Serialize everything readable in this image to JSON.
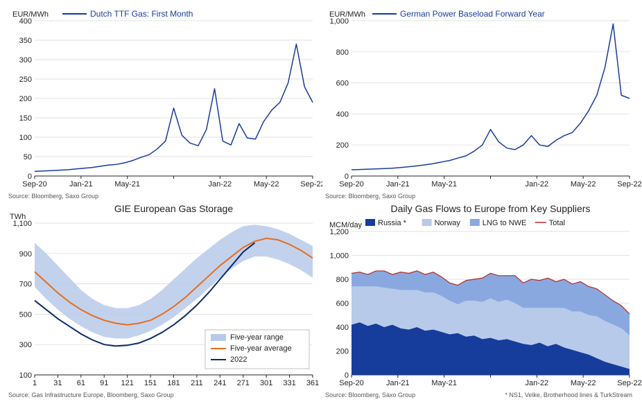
{
  "colors": {
    "line_blue": "#163c9c",
    "orange": "#e86c19",
    "navy": "#0b2a66",
    "area_light": "#b7caea",
    "area_mid": "#8aa8e0",
    "area_dark": "#163c9c",
    "red_line": "#b02a2a",
    "grid": "#d9d9d9",
    "axis": "#222222",
    "bg": "#ffffff"
  },
  "chart1": {
    "type": "line",
    "y_unit": "EUR/MWh",
    "legend": "Dutch TTF Gas: First Month",
    "source": "Source: Bloomberg, Saxo Group",
    "x_labels": [
      "Sep-20",
      "Jan-21",
      "May-21",
      "",
      "Jan-22",
      "May-22",
      "Sep-22"
    ],
    "x_ticks_major": [
      0,
      4,
      8,
      12,
      16,
      20,
      24
    ],
    "ylim": [
      0,
      400
    ],
    "ytick_step": 50,
    "series": [
      {
        "name": "ttf",
        "color": "#163c9c",
        "width": 1.5,
        "y": [
          12,
          13,
          14,
          15,
          16,
          18,
          20,
          22,
          25,
          28,
          30,
          34,
          40,
          48,
          55,
          70,
          90,
          175,
          105,
          85,
          78,
          120,
          225,
          90,
          80,
          135,
          98,
          95,
          140,
          170,
          190,
          240,
          340,
          230,
          190
        ]
      }
    ]
  },
  "chart2": {
    "type": "line",
    "y_unit": "EUR/MWh",
    "legend": "German Power Baseload Forward Year",
    "source": "Source: Bloomberg, Saxo Group",
    "x_labels": [
      "Sep-20",
      "Jan-21",
      "May-21",
      "",
      "Jan-22",
      "May-22",
      "Sep-22"
    ],
    "x_ticks_major": [
      0,
      4,
      8,
      12,
      16,
      20,
      24
    ],
    "ylim": [
      0,
      1000
    ],
    "ytick_step": 200,
    "series": [
      {
        "name": "power",
        "color": "#163c9c",
        "width": 1.5,
        "y": [
          40,
          42,
          44,
          46,
          48,
          50,
          55,
          60,
          65,
          72,
          80,
          90,
          100,
          115,
          130,
          160,
          200,
          300,
          220,
          180,
          170,
          200,
          260,
          200,
          190,
          230,
          260,
          280,
          340,
          420,
          520,
          700,
          980,
          520,
          500
        ]
      }
    ]
  },
  "chart3": {
    "type": "line-band",
    "title": "GIE European Gas Storage",
    "y_unit": "TWh",
    "source": "Source: Gas Infrastructure Europe, Bloomberg, Saxo Group",
    "x_labels": [
      "1",
      "31",
      "61",
      "91",
      "121",
      "151",
      "181",
      "211",
      "241",
      "271",
      "301",
      "331",
      "361"
    ],
    "ylim": [
      100,
      1100
    ],
    "ytick_step": 200,
    "legend_items": [
      {
        "label": "Five-year range",
        "swatch": "#b7caea",
        "type": "area"
      },
      {
        "label": "Five-year average",
        "swatch": "#e86c19",
        "type": "line"
      },
      {
        "label": "2022",
        "swatch": "#0b2a66",
        "type": "line"
      }
    ],
    "band": {
      "color": "#b7caea",
      "upper": [
        970,
        900,
        820,
        740,
        660,
        600,
        560,
        540,
        540,
        560,
        600,
        660,
        730,
        800,
        870,
        930,
        990,
        1040,
        1080,
        1090,
        1080,
        1060,
        1030,
        990,
        950
      ],
      "lower": [
        680,
        600,
        530,
        470,
        420,
        380,
        350,
        340,
        340,
        360,
        390,
        430,
        480,
        540,
        600,
        670,
        740,
        800,
        850,
        880,
        880,
        860,
        830,
        790,
        740
      ]
    },
    "avg": {
      "color": "#e86c19",
      "width": 2,
      "y": [
        780,
        710,
        640,
        580,
        530,
        490,
        460,
        440,
        430,
        440,
        460,
        500,
        550,
        610,
        680,
        750,
        820,
        880,
        940,
        980,
        1000,
        990,
        960,
        920,
        870
      ]
    },
    "yr2022": {
      "color": "#0b2a66",
      "width": 2,
      "y": [
        590,
        530,
        470,
        420,
        370,
        330,
        300,
        290,
        295,
        310,
        340,
        380,
        430,
        490,
        560,
        640,
        730,
        820,
        910,
        970
      ]
    }
  },
  "chart4": {
    "type": "stacked-area",
    "title": "Daily Gas Flows to Europe from Key Suppliers",
    "y_unit": "MCM/day",
    "source": "Source: Bloomberg, Saxo Group",
    "footnote": "* NS1, Velke, Brotherhood lines & TurkStream",
    "x_labels": [
      "Sep-20",
      "Jan-21",
      "May-21",
      "",
      "Jan-22",
      "May-22",
      "Sep-22"
    ],
    "x_ticks_major": [
      0,
      4,
      8,
      12,
      16,
      20,
      24
    ],
    "ylim": [
      0,
      1200
    ],
    "ytick_step": 200,
    "legend_items": [
      {
        "label": "Russia *",
        "swatch": "#163c9c",
        "type": "area"
      },
      {
        "label": "Norway",
        "swatch": "#b7caea",
        "type": "area"
      },
      {
        "label": "LNG to NWE",
        "swatch": "#8aa8e0",
        "type": "area"
      },
      {
        "label": "Total",
        "swatch": "#b02a2a",
        "type": "line"
      }
    ],
    "stack": [
      {
        "name": "Russia",
        "color": "#163c9c",
        "y": [
          420,
          440,
          410,
          430,
          400,
          420,
          390,
          380,
          400,
          370,
          380,
          360,
          340,
          350,
          320,
          330,
          300,
          310,
          290,
          300,
          280,
          260,
          250,
          270,
          240,
          260,
          230,
          210,
          190,
          170,
          140,
          110,
          90,
          70,
          50
        ]
      },
      {
        "name": "Norway",
        "color": "#b7caea",
        "y": [
          320,
          300,
          330,
          310,
          330,
          300,
          320,
          330,
          310,
          320,
          310,
          300,
          280,
          240,
          300,
          290,
          310,
          330,
          320,
          330,
          320,
          300,
          310,
          290,
          320,
          300,
          330,
          320,
          340,
          330,
          350,
          340,
          330,
          320,
          280
        ]
      },
      {
        "name": "LNG",
        "color": "#8aa8e0",
        "y": [
          110,
          120,
          100,
          130,
          140,
          120,
          150,
          140,
          160,
          150,
          170,
          160,
          150,
          160,
          170,
          180,
          200,
          210,
          220,
          200,
          230,
          210,
          240,
          230,
          250,
          220,
          240,
          230,
          250,
          240,
          230,
          220,
          200,
          190,
          180
        ]
      }
    ],
    "total_line": {
      "color": "#b02a2a",
      "width": 1.2
    }
  }
}
